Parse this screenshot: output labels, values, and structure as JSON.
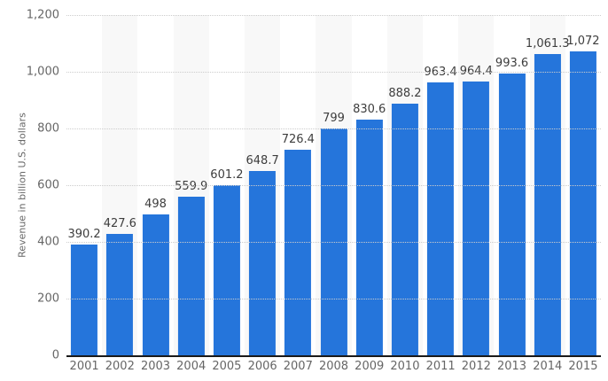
{
  "chart_data": {
    "type": "bar",
    "title": "",
    "xlabel": "",
    "ylabel": "Revenue in billion U.S. dollars",
    "categories": [
      "2001",
      "2002",
      "2003",
      "2004",
      "2005",
      "2006",
      "2007",
      "2008",
      "2009",
      "2010",
      "2011",
      "2012",
      "2013",
      "2014",
      "2015"
    ],
    "values": [
      390.2,
      427.6,
      498,
      559.9,
      601.2,
      648.7,
      726.4,
      799,
      830.6,
      888.2,
      963.4,
      964.4,
      993.6,
      1061.3,
      1072
    ],
    "value_labels": [
      "390.2",
      "427.6",
      "498",
      "559.9",
      "601.2",
      "648.7",
      "726.4",
      "799",
      "830.6",
      "888.2",
      "963.4",
      "964.4",
      "993.6",
      "1,061.3",
      "1,072"
    ],
    "ylim": [
      0,
      1200
    ],
    "y_tick_values": [
      0,
      200,
      400,
      600,
      800,
      1000,
      1200
    ],
    "y_tick_labels": [
      "0",
      "200",
      "400",
      "600",
      "800",
      "1,000",
      "1,200"
    ],
    "grid": "horizontal-dotted",
    "legend": "none",
    "band_pattern": "alternating columns, even-year columns shaded",
    "colors": {
      "bar": "#2575db",
      "band": "#f8f8f8",
      "gridline": "#cccccc",
      "axis_line": "#1a1a1a",
      "tick_text": "#666666",
      "value_text": "#3d3d3d"
    }
  }
}
